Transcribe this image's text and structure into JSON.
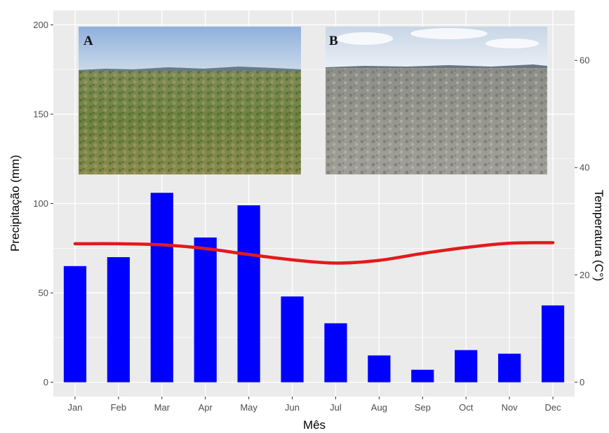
{
  "colors": {
    "panel_background": "#ebebeb",
    "grid": "#ffffff",
    "bars": "#0000ff",
    "temperature_line": "#e31a1c"
  },
  "inset_photos": [
    {
      "label": "A",
      "description_icon": "photo-green-shrubland"
    },
    {
      "label": "B",
      "description_icon": "photo-dry-grey-shrubland"
    }
  ],
  "chart_data": {
    "type": "bar",
    "xlabel": "Mês",
    "ylabel": "Precipitação (mm)",
    "y2label": "Temperatura (C°)",
    "categories": [
      "Jan",
      "Feb",
      "Mar",
      "Apr",
      "May",
      "Jun",
      "Jul",
      "Aug",
      "Sep",
      "Oct",
      "Nov",
      "Dec"
    ],
    "ylim": [
      -8,
      208
    ],
    "yticks": [
      0,
      50,
      100,
      150,
      200
    ],
    "y2lim": [
      -2.7,
      69.3
    ],
    "y2ticks": [
      0,
      20,
      40,
      60
    ],
    "series": [
      {
        "type": "bar",
        "axis": "left",
        "values": [
          65,
          70,
          106,
          81,
          99,
          48,
          33,
          15,
          7,
          18,
          16,
          43
        ]
      },
      {
        "type": "line",
        "axis": "right",
        "values": [
          25.8,
          25.8,
          25.6,
          24.9,
          23.8,
          22.8,
          22.2,
          22.7,
          24.0,
          25.1,
          25.9,
          26.0
        ]
      }
    ]
  }
}
